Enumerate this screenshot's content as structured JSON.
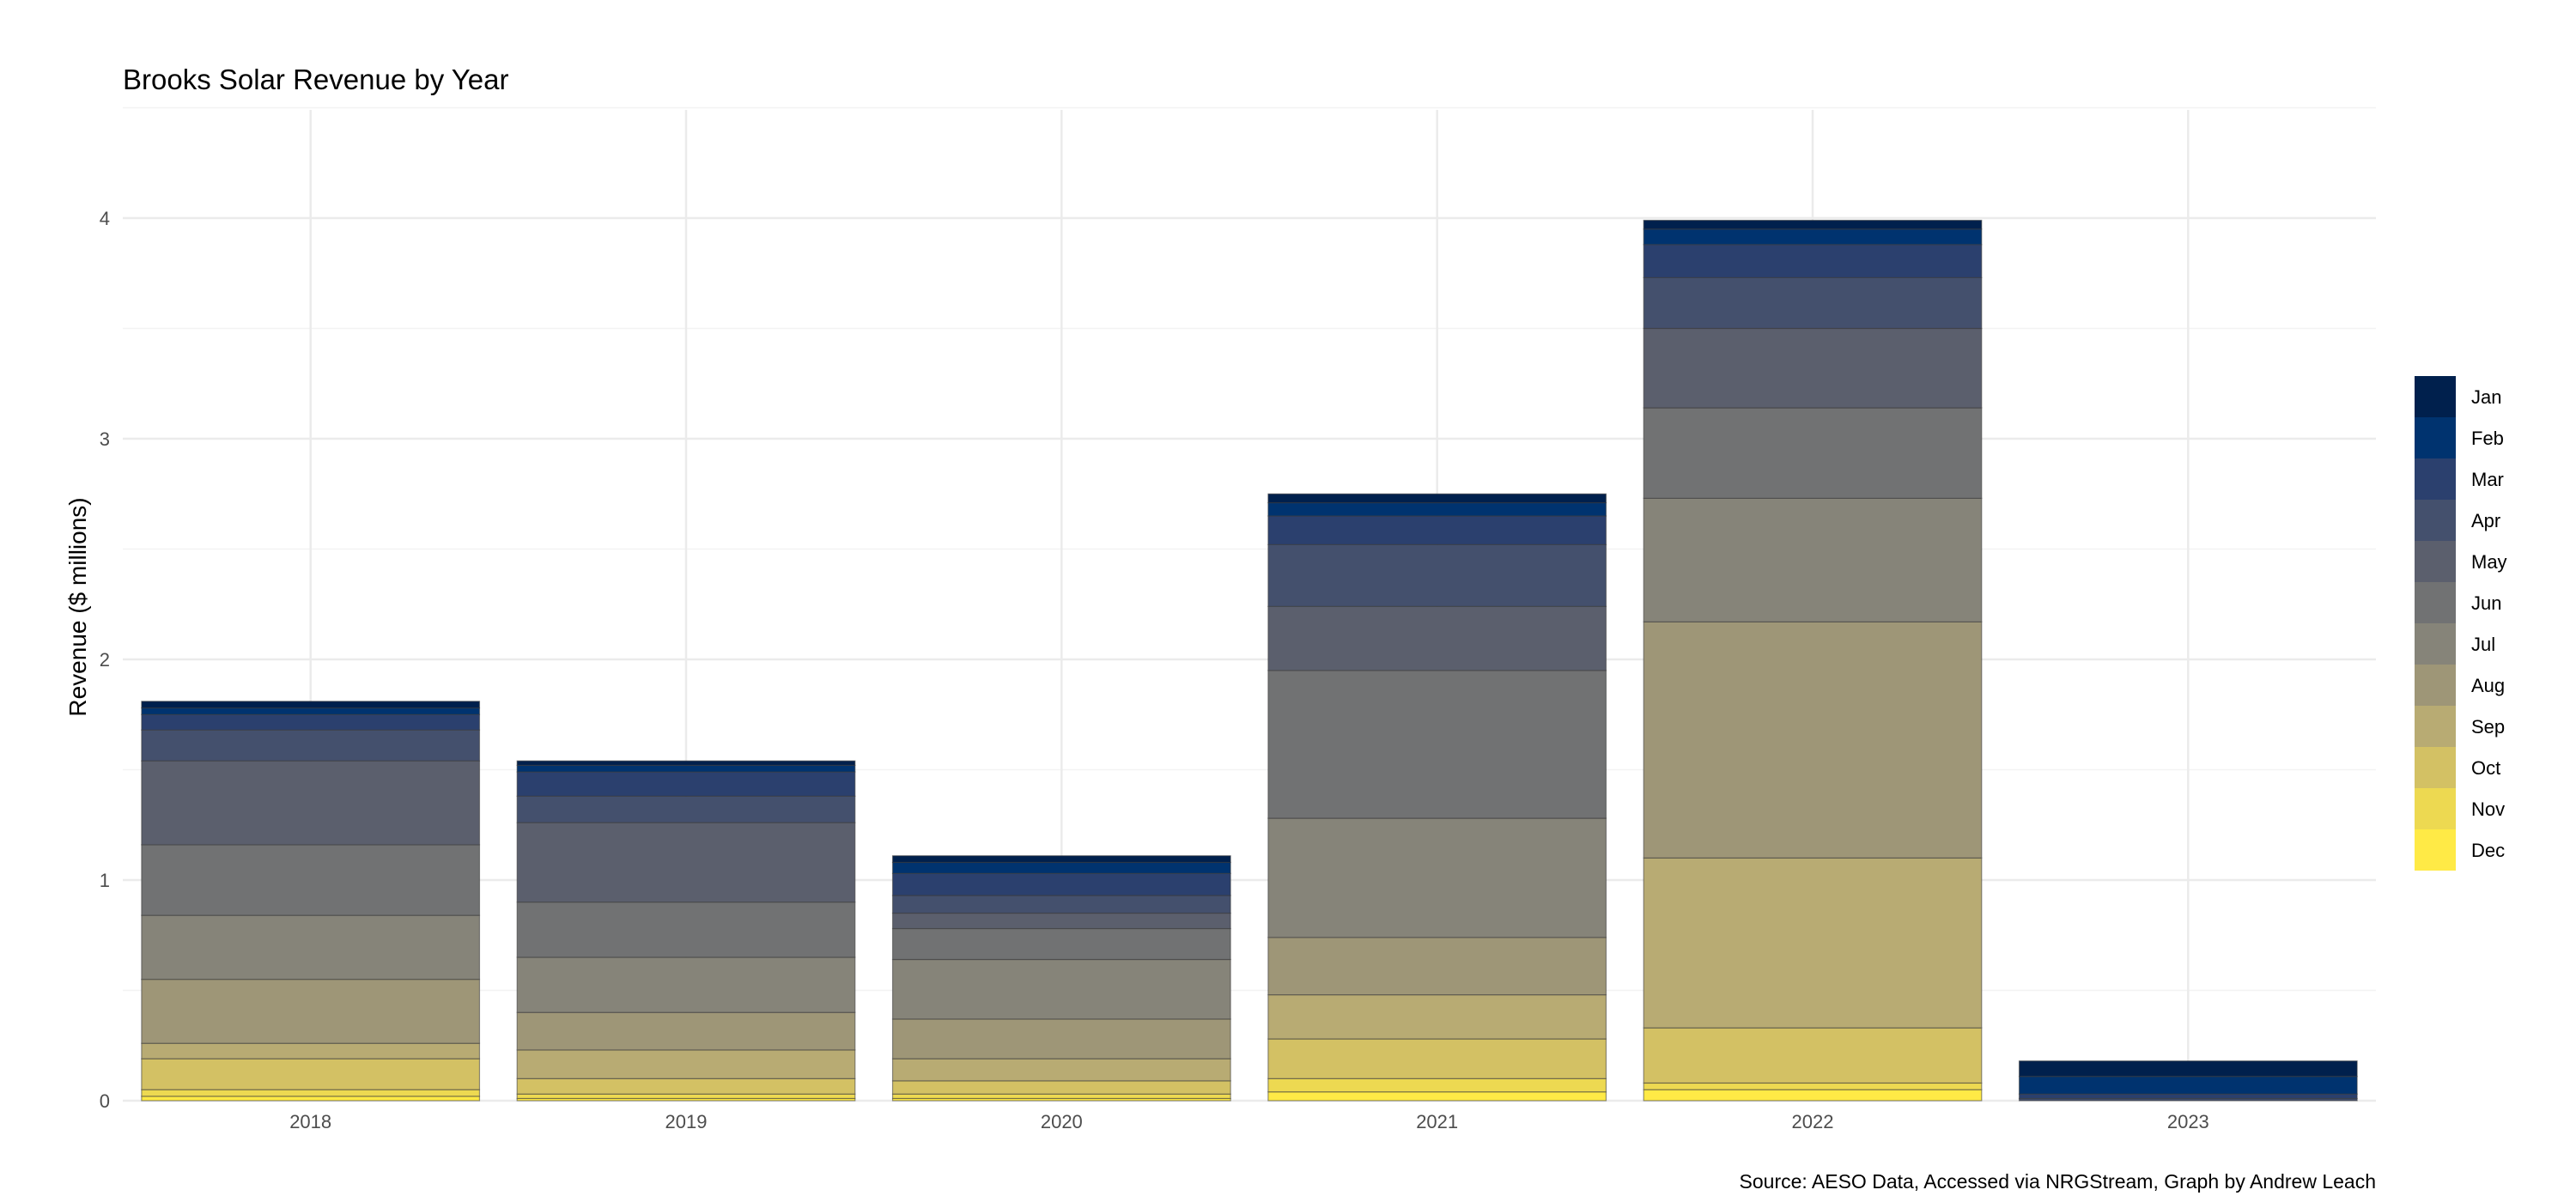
{
  "chart_data": {
    "type": "bar",
    "stacked": true,
    "title": "Brooks Solar Revenue by Year",
    "xlabel": "",
    "ylabel": "Revenue ($ millions)",
    "caption": "Source: AESO Data, Accessed via NRGStream, Graph by Andrew Leach",
    "categories": [
      "2018",
      "2019",
      "2020",
      "2021",
      "2022",
      "2023"
    ],
    "ylim": [
      0,
      4.5
    ],
    "yticks": [
      0,
      1,
      2,
      3,
      4
    ],
    "grid": true,
    "legend_position": "right",
    "stack_order": "Dec at bottom, Jan at top",
    "series": [
      {
        "name": "Dec",
        "color": "#FFEA46",
        "values": [
          0.02,
          0.01,
          0.01,
          0.04,
          0.05,
          0.0
        ]
      },
      {
        "name": "Nov",
        "color": "#EDD951",
        "values": [
          0.03,
          0.02,
          0.02,
          0.06,
          0.03,
          0.0
        ]
      },
      {
        "name": "Oct",
        "color": "#D3C164",
        "values": [
          0.14,
          0.07,
          0.06,
          0.18,
          0.25,
          0.0
        ]
      },
      {
        "name": "Sep",
        "color": "#B8AB73",
        "values": [
          0.07,
          0.13,
          0.1,
          0.2,
          0.77,
          0.0
        ]
      },
      {
        "name": "Aug",
        "color": "#9E9677",
        "values": [
          0.29,
          0.17,
          0.18,
          0.26,
          1.07,
          0.0
        ]
      },
      {
        "name": "Jul",
        "color": "#868479",
        "values": [
          0.29,
          0.25,
          0.27,
          0.54,
          0.56,
          0.0
        ]
      },
      {
        "name": "Jun",
        "color": "#717273",
        "values": [
          0.32,
          0.25,
          0.14,
          0.67,
          0.41,
          0.0
        ]
      },
      {
        "name": "May",
        "color": "#5B5F6D",
        "values": [
          0.38,
          0.36,
          0.07,
          0.29,
          0.36,
          0.0
        ]
      },
      {
        "name": "Apr",
        "color": "#44506D",
        "values": [
          0.14,
          0.12,
          0.08,
          0.28,
          0.23,
          0.01
        ]
      },
      {
        "name": "Mar",
        "color": "#2B406E",
        "values": [
          0.07,
          0.11,
          0.1,
          0.13,
          0.15,
          0.02
        ]
      },
      {
        "name": "Feb",
        "color": "#00336F",
        "values": [
          0.03,
          0.03,
          0.05,
          0.06,
          0.07,
          0.08
        ]
      },
      {
        "name": "Jan",
        "color": "#00204D",
        "values": [
          0.03,
          0.02,
          0.03,
          0.04,
          0.04,
          0.07
        ]
      }
    ]
  }
}
